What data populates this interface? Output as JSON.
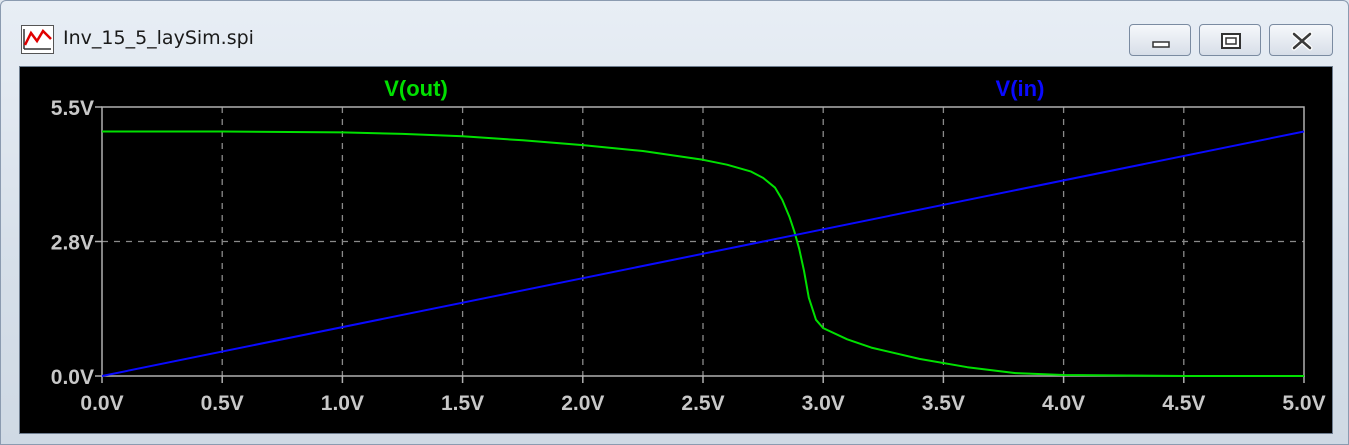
{
  "window": {
    "title": "Inv_15_5_laySim.spi",
    "icon": "waveform-icon",
    "buttons": {
      "minimize": "minimize-icon",
      "maximize": "maximize-icon",
      "close": "close-icon"
    }
  },
  "chart_data": {
    "type": "line",
    "xlim": [
      0,
      5
    ],
    "ylim": [
      0,
      5.5
    ],
    "x_ticks": [
      {
        "value": 0.0,
        "label": "0.0V"
      },
      {
        "value": 0.5,
        "label": "0.5V"
      },
      {
        "value": 1.0,
        "label": "1.0V"
      },
      {
        "value": 1.5,
        "label": "1.5V"
      },
      {
        "value": 2.0,
        "label": "2.0V"
      },
      {
        "value": 2.5,
        "label": "2.5V"
      },
      {
        "value": 3.0,
        "label": "3.0V"
      },
      {
        "value": 3.5,
        "label": "3.5V"
      },
      {
        "value": 4.0,
        "label": "4.0V"
      },
      {
        "value": 4.5,
        "label": "4.5V"
      },
      {
        "value": 5.0,
        "label": "5.0V"
      }
    ],
    "y_ticks": [
      {
        "value": 0.0,
        "label": "0.0V"
      },
      {
        "value": 2.75,
        "label": "2.8V"
      },
      {
        "value": 5.5,
        "label": "5.5V"
      }
    ],
    "grid": true,
    "background": "#000000",
    "grid_color": "#8a8a8a",
    "series": [
      {
        "name": "V(out)",
        "color": "#00e000",
        "x": [
          0.0,
          0.5,
          1.0,
          1.25,
          1.5,
          1.75,
          2.0,
          2.25,
          2.5,
          2.6,
          2.7,
          2.75,
          2.8,
          2.83,
          2.86,
          2.88,
          2.9,
          2.92,
          2.94,
          2.97,
          3.0,
          3.1,
          3.2,
          3.4,
          3.6,
          3.8,
          4.0,
          4.5,
          5.0
        ],
        "y": [
          5.0,
          5.0,
          4.98,
          4.95,
          4.9,
          4.82,
          4.72,
          4.6,
          4.42,
          4.32,
          4.18,
          4.05,
          3.85,
          3.6,
          3.25,
          2.95,
          2.6,
          2.15,
          1.6,
          1.15,
          0.98,
          0.75,
          0.58,
          0.35,
          0.18,
          0.06,
          0.02,
          0.0,
          0.0
        ]
      },
      {
        "name": "V(in)",
        "color": "#0a0aff",
        "x": [
          0.0,
          5.0
        ],
        "y": [
          0.0,
          5.0
        ]
      }
    ]
  }
}
